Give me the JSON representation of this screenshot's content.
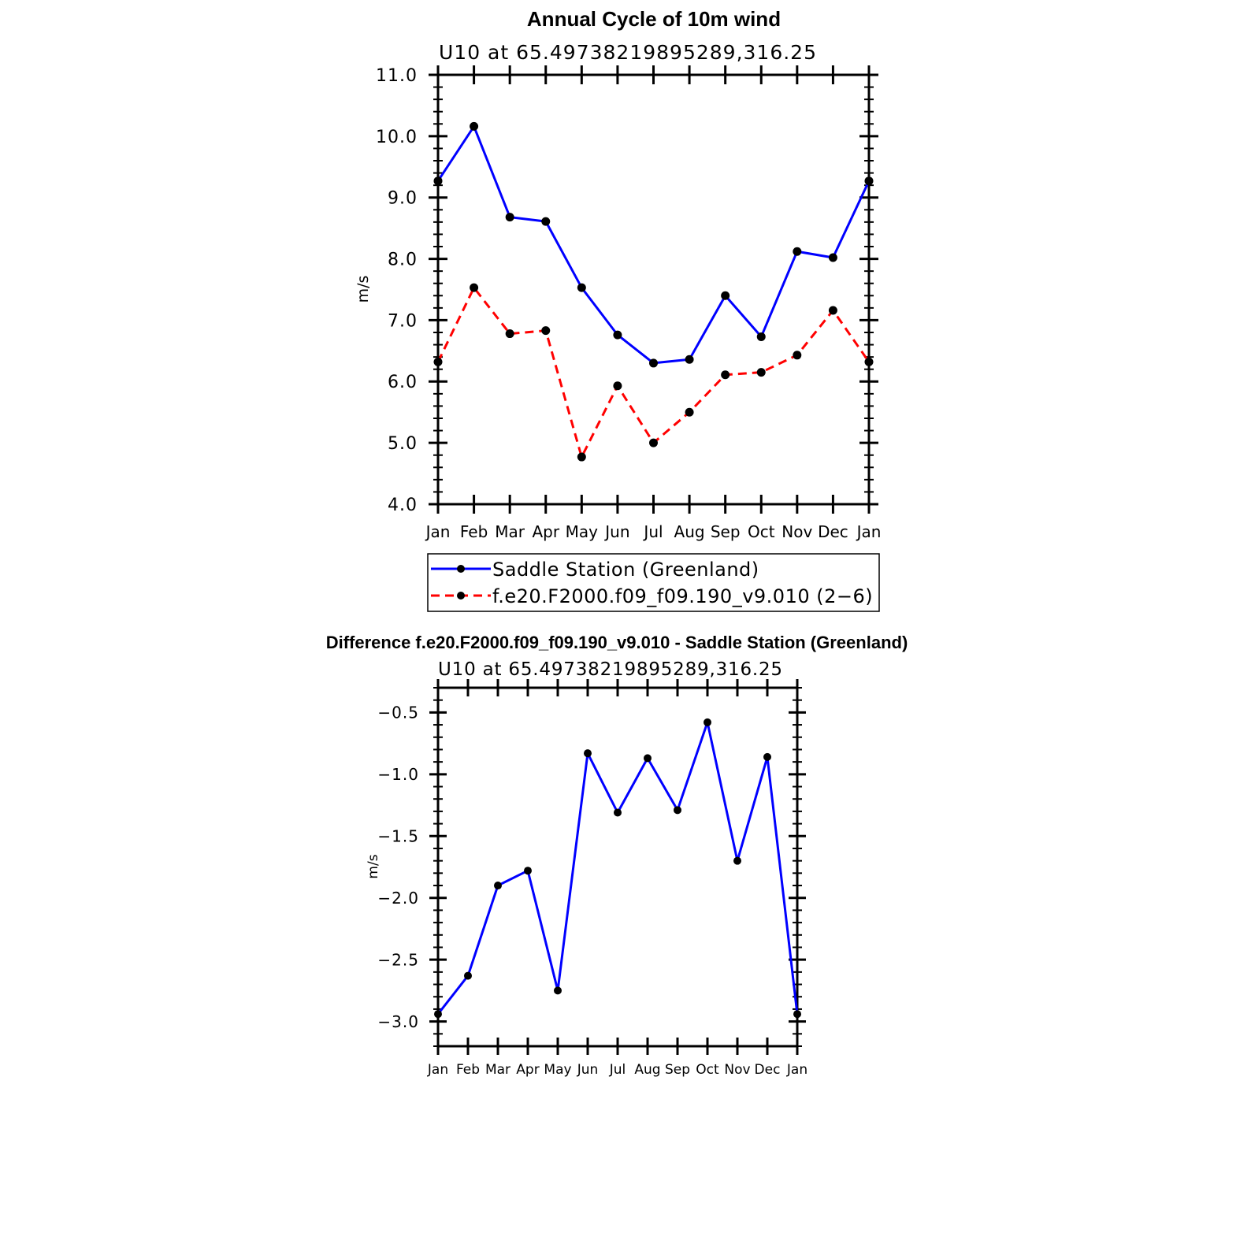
{
  "chart_data": [
    {
      "type": "line",
      "title": "Annual Cycle of 10m wind",
      "subtitle": "U10 at 65.49738219895289,316.25",
      "ylabel": "m/s",
      "xlabel": "",
      "ylim": [
        4.0,
        11.0
      ],
      "yticks": [
        "4.0",
        "5.0",
        "6.0",
        "7.0",
        "8.0",
        "9.0",
        "10.0",
        "11.0"
      ],
      "categories": [
        "Jan",
        "Feb",
        "Mar",
        "Apr",
        "May",
        "Jun",
        "Jul",
        "Aug",
        "Sep",
        "Oct",
        "Nov",
        "Dec",
        "Jan"
      ],
      "series": [
        {
          "name": "Saddle Station (Greenland)",
          "color": "#0000ff",
          "dash": "solid",
          "values": [
            9.27,
            10.16,
            8.68,
            8.61,
            7.53,
            6.76,
            6.3,
            6.36,
            7.4,
            6.73,
            8.12,
            8.02,
            9.27
          ]
        },
        {
          "name": "f.e20.F2000.f09_f09.190_v9.010 (2−6)",
          "color": "#ff0000",
          "dash": "dashed",
          "values": [
            6.32,
            7.53,
            6.78,
            6.83,
            4.77,
            5.93,
            5.0,
            5.5,
            6.11,
            6.15,
            6.43,
            7.16,
            6.32
          ]
        }
      ],
      "legend_position": "bottom"
    },
    {
      "type": "line",
      "title": "Difference f.e20.F2000.f09_f09.190_v9.010 - Saddle Station (Greenland)",
      "subtitle": "U10 at 65.49738219895289,316.25",
      "ylabel": "m/s",
      "xlabel": "",
      "ylim": [
        -3.2,
        -0.3
      ],
      "yticks": [
        "−3.0",
        "−2.5",
        "−2.0",
        "−1.5",
        "−1.0",
        "−0.5"
      ],
      "ytick_values": [
        -3.0,
        -2.5,
        -2.0,
        -1.5,
        -1.0,
        -0.5
      ],
      "categories": [
        "Jan",
        "Feb",
        "Mar",
        "Apr",
        "May",
        "Jun",
        "Jul",
        "Aug",
        "Sep",
        "Oct",
        "Nov",
        "Dec",
        "Jan"
      ],
      "series": [
        {
          "name": "Difference",
          "color": "#0000ff",
          "dash": "solid",
          "values": [
            -2.94,
            -2.63,
            -1.9,
            -1.78,
            -2.75,
            -0.83,
            -1.31,
            -0.87,
            -1.29,
            -0.58,
            -1.7,
            -0.86,
            -2.94
          ]
        }
      ]
    }
  ]
}
